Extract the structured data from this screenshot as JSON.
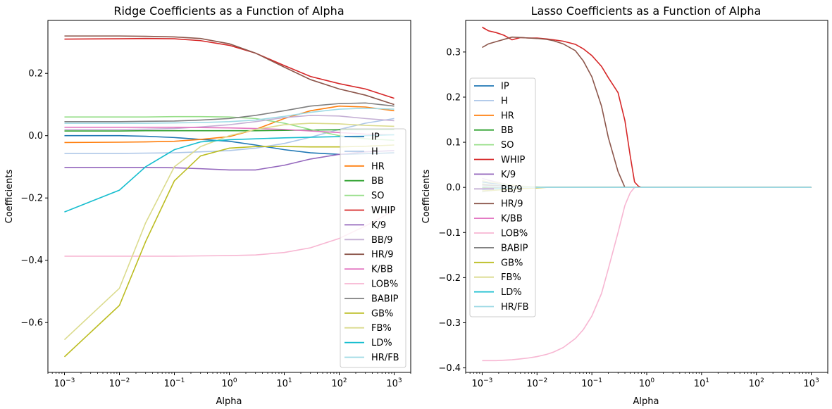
{
  "palette": {
    "IP": "#1f77b4",
    "H": "#aec7e8",
    "HR": "#ff7f0e",
    "BB": "#2ca02c",
    "SO": "#98df8a",
    "WHIP": "#d62728",
    "K/9": "#9467bd",
    "BB/9": "#c5b0d5",
    "HR/9": "#8c564b",
    "K/BB": "#e377c2",
    "LOB%": "#f7b6d2",
    "BABIP": "#7f7f7f",
    "GB%": "#bcbd22",
    "FB%": "#dbdb8d",
    "LD%": "#17becf",
    "HR/FB": "#9edae5"
  },
  "chart_data": [
    {
      "type": "line",
      "title": "Ridge Coefficients as a Function of Alpha",
      "xlabel": "Alpha",
      "ylabel": "Coefficients",
      "xscale": "log",
      "xlim": [
        0.0005,
        2000
      ],
      "ylim": [
        -0.76,
        0.37
      ],
      "xticks": [
        0.001,
        0.01,
        0.1,
        1,
        10,
        100,
        1000
      ],
      "xtick_labels": [
        "10^-3",
        "10^-2",
        "10^-1",
        "10^0",
        "10^1",
        "10^2",
        "10^3"
      ],
      "yticks": [
        -0.6,
        -0.4,
        -0.2,
        0.0,
        0.2
      ],
      "ytick_labels": [
        "−0.6",
        "−0.4",
        "−0.2",
        "0.0",
        "0.2"
      ],
      "legend_loc": "lower right",
      "x": [
        0.001,
        0.01,
        0.03,
        0.1,
        0.3,
        1,
        3,
        10,
        30,
        100,
        300,
        1000
      ],
      "series": [
        {
          "name": "IP",
          "values": [
            0.0,
            0.0,
            -0.002,
            -0.006,
            -0.012,
            -0.018,
            -0.03,
            -0.045,
            -0.055,
            -0.06,
            -0.058,
            -0.055
          ]
        },
        {
          "name": "H",
          "values": [
            -0.057,
            -0.057,
            -0.056,
            -0.055,
            -0.052,
            -0.048,
            -0.04,
            -0.025,
            -0.005,
            0.02,
            0.04,
            0.055
          ]
        },
        {
          "name": "HR",
          "values": [
            -0.022,
            -0.021,
            -0.02,
            -0.018,
            -0.012,
            -0.003,
            0.02,
            0.055,
            0.08,
            0.095,
            0.092,
            0.08
          ]
        },
        {
          "name": "BB",
          "values": [
            0.015,
            0.015,
            0.016,
            0.016,
            0.016,
            0.016,
            0.016,
            0.017,
            0.018,
            0.019,
            0.02,
            0.02
          ]
        },
        {
          "name": "SO",
          "values": [
            0.06,
            0.06,
            0.06,
            0.061,
            0.061,
            0.06,
            0.055,
            0.04,
            0.02,
            0.0,
            -0.01,
            -0.015
          ]
        },
        {
          "name": "WHIP",
          "values": [
            0.31,
            0.311,
            0.312,
            0.311,
            0.305,
            0.29,
            0.265,
            0.225,
            0.19,
            0.167,
            0.15,
            0.12
          ]
        },
        {
          "name": "K/9",
          "values": [
            -0.102,
            -0.102,
            -0.102,
            -0.103,
            -0.106,
            -0.11,
            -0.11,
            -0.095,
            -0.075,
            -0.06,
            -0.052,
            -0.048
          ]
        },
        {
          "name": "BB/9",
          "values": [
            0.02,
            0.02,
            0.021,
            0.023,
            0.028,
            0.035,
            0.045,
            0.058,
            0.065,
            0.063,
            0.055,
            0.048
          ]
        },
        {
          "name": "HR/9",
          "values": [
            0.32,
            0.32,
            0.319,
            0.317,
            0.312,
            0.295,
            0.265,
            0.22,
            0.18,
            0.15,
            0.13,
            0.1
          ]
        },
        {
          "name": "K/BB",
          "values": [
            0.027,
            0.027,
            0.027,
            0.027,
            0.026,
            0.025,
            0.023,
            0.02,
            0.015,
            0.01,
            0.005,
            0.003
          ]
        },
        {
          "name": "LOB%",
          "values": [
            -0.387,
            -0.387,
            -0.387,
            -0.387,
            -0.386,
            -0.385,
            -0.383,
            -0.375,
            -0.36,
            -0.33,
            -0.29,
            -0.24
          ]
        },
        {
          "name": "BABIP",
          "values": [
            0.045,
            0.045,
            0.046,
            0.047,
            0.05,
            0.055,
            0.065,
            0.08,
            0.095,
            0.103,
            0.105,
            0.095
          ]
        },
        {
          "name": "GB%",
          "values": [
            -0.71,
            -0.545,
            -0.34,
            -0.145,
            -0.065,
            -0.04,
            -0.035,
            -0.035,
            -0.036,
            -0.036,
            -0.034,
            -0.03
          ]
        },
        {
          "name": "FB%",
          "values": [
            -0.655,
            -0.49,
            -0.28,
            -0.1,
            -0.035,
            0.0,
            0.02,
            0.035,
            0.04,
            0.038,
            0.033,
            0.03
          ]
        },
        {
          "name": "LD%",
          "values": [
            -0.245,
            -0.175,
            -0.1,
            -0.045,
            -0.02,
            -0.013,
            -0.01,
            -0.007,
            -0.005,
            -0.003,
            0.0,
            0.003
          ]
        },
        {
          "name": "HR/FB",
          "values": [
            0.04,
            0.04,
            0.04,
            0.041,
            0.042,
            0.045,
            0.05,
            0.062,
            0.075,
            0.085,
            0.088,
            0.085
          ]
        }
      ]
    },
    {
      "type": "line",
      "title": "Lasso Coefficients as a Function of Alpha",
      "xlabel": "Alpha",
      "ylabel": "Coefficients",
      "xscale": "log",
      "xlim": [
        0.0005,
        2000
      ],
      "ylim": [
        -0.41,
        0.37
      ],
      "xticks": [
        0.001,
        0.01,
        0.1,
        1,
        10,
        100,
        1000
      ],
      "xtick_labels": [
        "10^-3",
        "10^-2",
        "10^-1",
        "10^0",
        "10^1",
        "10^2",
        "10^3"
      ],
      "yticks": [
        -0.4,
        -0.3,
        -0.2,
        -0.1,
        0.0,
        0.1,
        0.2,
        0.3
      ],
      "ytick_labels": [
        "−0.4",
        "−0.3",
        "−0.2",
        "−0.1",
        "0.0",
        "0.1",
        "0.2",
        "0.3"
      ],
      "legend_loc": "center left",
      "x": [
        0.001,
        0.0013,
        0.0018,
        0.0025,
        0.0035,
        0.005,
        0.007,
        0.01,
        0.015,
        0.02,
        0.03,
        0.05,
        0.07,
        0.1,
        0.15,
        0.2,
        0.3,
        0.4,
        0.5,
        0.6,
        0.7,
        0.8,
        1,
        10,
        100,
        1000
      ],
      "series": [
        {
          "name": "IP",
          "values": [
            0.012,
            0.01,
            0.008,
            0.006,
            0.004,
            0.002,
            0.001,
            0.0,
            0,
            0,
            0,
            0,
            0,
            0,
            0,
            0,
            0,
            0,
            0,
            0,
            0,
            0,
            0,
            0,
            0,
            0
          ]
        },
        {
          "name": "H",
          "values": [
            -0.01,
            -0.008,
            -0.006,
            -0.004,
            -0.002,
            -0.001,
            0,
            0,
            0,
            0,
            0,
            0,
            0,
            0,
            0,
            0,
            0,
            0,
            0,
            0,
            0,
            0,
            0,
            0,
            0,
            0
          ]
        },
        {
          "name": "HR",
          "values": [
            0.005,
            0.004,
            0.003,
            0.002,
            0.001,
            0,
            0,
            0,
            0,
            0,
            0,
            0,
            0,
            0,
            0,
            0,
            0,
            0,
            0,
            0,
            0,
            0,
            0,
            0,
            0,
            0
          ]
        },
        {
          "name": "BB",
          "values": [
            0.0,
            0.0,
            0.0,
            0.0,
            0.0,
            0,
            0,
            0,
            0,
            0,
            0,
            0,
            0,
            0,
            0,
            0,
            0,
            0,
            0,
            0,
            0,
            0,
            0,
            0,
            0,
            0
          ]
        },
        {
          "name": "SO",
          "values": [
            0.008,
            0.006,
            0.004,
            0.002,
            0.001,
            0,
            0,
            0,
            0,
            0,
            0,
            0,
            0,
            0,
            0,
            0,
            0,
            0,
            0,
            0,
            0,
            0,
            0,
            0,
            0,
            0
          ]
        },
        {
          "name": "WHIP",
          "values": [
            0.355,
            0.347,
            0.343,
            0.337,
            0.327,
            0.332,
            0.331,
            0.331,
            0.329,
            0.327,
            0.324,
            0.317,
            0.307,
            0.292,
            0.268,
            0.243,
            0.21,
            0.148,
            0.07,
            0.012,
            0.003,
            0.0,
            0,
            0,
            0,
            0
          ]
        },
        {
          "name": "K/9",
          "values": [
            -0.003,
            -0.002,
            -0.002,
            -0.001,
            -0.001,
            0,
            0,
            0,
            0,
            0,
            0,
            0,
            0,
            0,
            0,
            0,
            0,
            0,
            0,
            0,
            0,
            0,
            0,
            0,
            0,
            0
          ]
        },
        {
          "name": "BB/9",
          "values": [
            0.02,
            0.016,
            0.012,
            0.008,
            0.004,
            0.002,
            0,
            0,
            0,
            0,
            0,
            0,
            0,
            0,
            0,
            0,
            0,
            0,
            0,
            0,
            0,
            0,
            0,
            0,
            0,
            0
          ]
        },
        {
          "name": "HR/9",
          "values": [
            0.31,
            0.318,
            0.323,
            0.328,
            0.333,
            0.332,
            0.331,
            0.33,
            0.328,
            0.325,
            0.318,
            0.303,
            0.28,
            0.245,
            0.18,
            0.11,
            0.035,
            0.0,
            0,
            0,
            0,
            0,
            0,
            0,
            0,
            0
          ]
        },
        {
          "name": "K/BB",
          "values": [
            0.004,
            0.003,
            0.002,
            0.001,
            0,
            0,
            0,
            0,
            0,
            0,
            0,
            0,
            0,
            0,
            0,
            0,
            0,
            0,
            0,
            0,
            0,
            0,
            0,
            0,
            0,
            0
          ]
        },
        {
          "name": "LOB%",
          "values": [
            -0.384,
            -0.384,
            -0.384,
            -0.383,
            -0.382,
            -0.38,
            -0.378,
            -0.375,
            -0.37,
            -0.365,
            -0.355,
            -0.335,
            -0.315,
            -0.285,
            -0.235,
            -0.18,
            -0.1,
            -0.04,
            -0.012,
            0.0,
            0,
            0,
            0,
            0,
            0,
            0
          ]
        },
        {
          "name": "BABIP",
          "values": [
            0.006,
            0.005,
            0.004,
            0.003,
            0.002,
            0.001,
            0,
            0,
            0,
            0,
            0,
            0,
            0,
            0,
            0,
            0,
            0,
            0,
            0,
            0,
            0,
            0,
            0,
            0,
            0,
            0
          ]
        },
        {
          "name": "GB%",
          "values": [
            -0.008,
            -0.007,
            -0.006,
            -0.005,
            -0.004,
            -0.003,
            -0.002,
            -0.001,
            0,
            0,
            0,
            0,
            0,
            0,
            0,
            0,
            0,
            0,
            0,
            0,
            0,
            0,
            0,
            0,
            0,
            0
          ]
        },
        {
          "name": "FB%",
          "values": [
            0.015,
            0.012,
            0.01,
            0.007,
            0.005,
            0.003,
            0.002,
            0.001,
            0,
            0,
            0,
            0,
            0,
            0,
            0,
            0,
            0,
            0,
            0,
            0,
            0,
            0,
            0,
            0,
            0,
            0
          ]
        },
        {
          "name": "LD%",
          "values": [
            -0.005,
            -0.004,
            -0.003,
            -0.002,
            -0.001,
            0,
            0,
            0,
            0,
            0,
            0,
            0,
            0,
            0,
            0,
            0,
            0,
            0,
            0,
            0,
            0,
            0,
            0,
            0,
            0,
            0
          ]
        },
        {
          "name": "HR/FB",
          "values": [
            0.003,
            0.002,
            0.002,
            0.001,
            0,
            0,
            0,
            0,
            0,
            0,
            0,
            0,
            0,
            0,
            0,
            0,
            0,
            0,
            0,
            0,
            0,
            0,
            0,
            0,
            0,
            0
          ]
        }
      ]
    }
  ]
}
